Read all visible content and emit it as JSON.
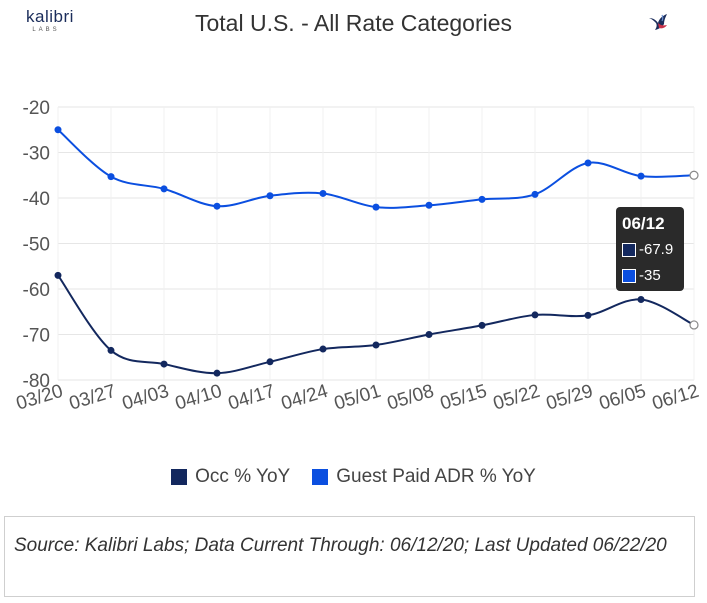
{
  "header": {
    "logo_text": "kalibri",
    "logo_subtext": "LABS",
    "title": "Total U.S. - All Rate Categories",
    "bird_icon": "bird-icon"
  },
  "chart_data": {
    "type": "line",
    "title": "Total U.S. - All Rate Categories",
    "categories": [
      "03/20",
      "03/27",
      "04/03",
      "04/10",
      "04/17",
      "04/24",
      "05/01",
      "05/08",
      "05/15",
      "05/22",
      "05/29",
      "06/05",
      "06/12"
    ],
    "y_ticks": [
      "-20",
      "-30",
      "-40",
      "-50",
      "-60",
      "-70",
      "-80"
    ],
    "ylim": [
      -80,
      -20
    ],
    "grid": true,
    "legend_position": "bottom",
    "series": [
      {
        "name": "Occ % YoY",
        "color": "#13285e",
        "values": [
          -57,
          -73.5,
          -76.5,
          -78.5,
          -76,
          -73.2,
          -72.3,
          -70,
          -68,
          -65.7,
          -65.8,
          -62.3,
          -67.9
        ]
      },
      {
        "name": "Guest Paid ADR % YoY",
        "color": "#0b4fe0",
        "values": [
          -25,
          -35.3,
          -38,
          -41.8,
          -39.5,
          -39,
          -42,
          -41.6,
          -40.3,
          -39.2,
          -32.3,
          -35.2,
          -35
        ]
      }
    ]
  },
  "tooltip": {
    "title": "06/12",
    "occ_value": "-67.9",
    "adr_value": "-35"
  },
  "legend": {
    "occ_label": "Occ % YoY",
    "adr_label": "Guest Paid ADR % YoY"
  },
  "footer": {
    "source_text": "Source: Kalibri Labs; Data Current Through: 06/12/20; Last Updated 06/22/20"
  }
}
